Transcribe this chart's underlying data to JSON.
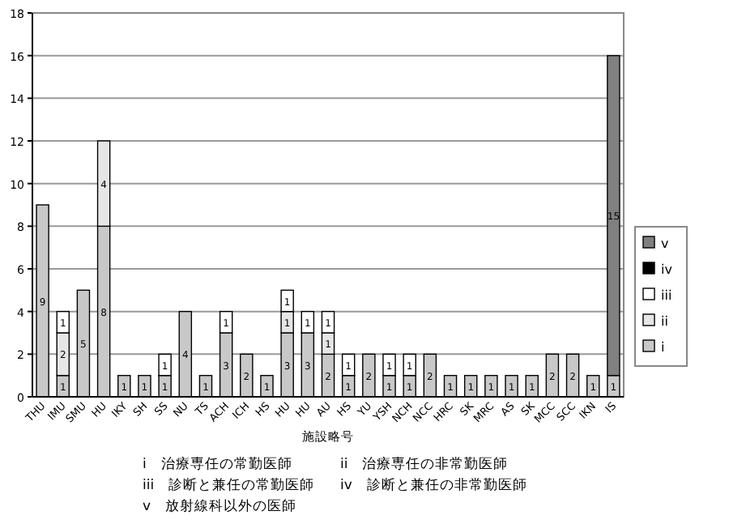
{
  "chart_data": {
    "type": "bar",
    "stacked": true,
    "xlabel": "施設略号",
    "categories": [
      "THU",
      "IMU",
      "SMU",
      "HU",
      "IKY",
      "SH",
      "SS",
      "NU",
      "TS",
      "ACH",
      "ICH",
      "HS",
      "HU",
      "HU",
      "AU",
      "HS",
      "YU",
      "YSH",
      "NCH",
      "NCC",
      "HRC",
      "SK",
      "MRC",
      "AS",
      "SK",
      "MCC",
      "SCC",
      "IKN",
      "IS"
    ],
    "series": [
      {
        "name": "i",
        "color": "#c8c8c8",
        "values": [
          9,
          1,
          5,
          8,
          1,
          1,
          1,
          4,
          1,
          3,
          2,
          1,
          3,
          3,
          2,
          1,
          2,
          1,
          1,
          2,
          1,
          1,
          1,
          1,
          1,
          2,
          2,
          1,
          1
        ]
      },
      {
        "name": "ii",
        "color": "#e6e6e6",
        "values": [
          null,
          2,
          null,
          4,
          null,
          null,
          null,
          null,
          null,
          null,
          null,
          null,
          1,
          null,
          1,
          null,
          null,
          null,
          null,
          null,
          null,
          null,
          null,
          null,
          null,
          null,
          null,
          null,
          null
        ]
      },
      {
        "name": "iii",
        "color": "#ffffff",
        "values": [
          null,
          1,
          null,
          null,
          null,
          null,
          1,
          null,
          null,
          1,
          null,
          null,
          1,
          1,
          1,
          1,
          null,
          1,
          1,
          null,
          null,
          null,
          null,
          null,
          null,
          null,
          null,
          null,
          null
        ]
      },
      {
        "name": "iv",
        "color": "#000000",
        "values": [
          null,
          null,
          null,
          null,
          null,
          null,
          null,
          null,
          null,
          null,
          null,
          null,
          null,
          null,
          null,
          null,
          null,
          null,
          null,
          null,
          null,
          null,
          null,
          null,
          null,
          null,
          null,
          null,
          null
        ]
      },
      {
        "name": "v",
        "color": "#808080",
        "values": [
          null,
          null,
          null,
          null,
          null,
          null,
          null,
          null,
          null,
          null,
          null,
          null,
          null,
          null,
          null,
          null,
          null,
          null,
          null,
          null,
          null,
          null,
          null,
          null,
          null,
          null,
          null,
          null,
          15
        ]
      }
    ],
    "ylim": [
      0,
      18
    ],
    "yticks": [
      0,
      2,
      4,
      6,
      8,
      10,
      12,
      14,
      16,
      18
    ],
    "grid": "y",
    "legend": "right",
    "data_labels": true,
    "annotations": [
      "i　治療専任の常勤医師",
      "ii　治療専任の非常勤医師",
      "iii　診断と兼任の常勤医師",
      "iv　診断と兼任の非常勤医師",
      "v　放射線科以外の医師"
    ]
  }
}
